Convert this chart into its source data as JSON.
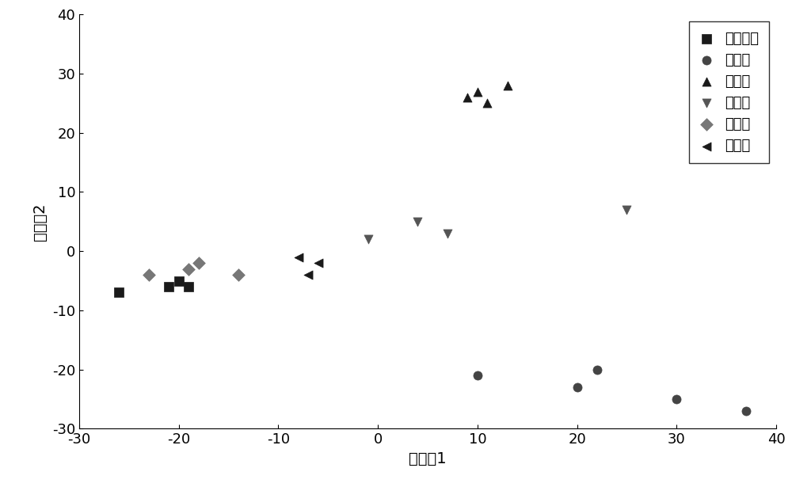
{
  "title": "",
  "xlabel": "主成劆1",
  "ylabel": "主成劆2",
  "xlim": [
    -30,
    40
  ],
  "ylim": [
    -30,
    40
  ],
  "xticks": [
    -30,
    -20,
    -10,
    0,
    10,
    20,
    30,
    40
  ],
  "yticks": [
    -30,
    -20,
    -10,
    0,
    10,
    20,
    30,
    40
  ],
  "series": [
    {
      "label": "葵花子油",
      "marker": "s",
      "color": "#1a1a1a",
      "markersize": 8,
      "x": [
        -26,
        -21,
        -20,
        -19
      ],
      "y": [
        -7,
        -6,
        -5,
        -6
      ]
    },
    {
      "label": "橄榄油",
      "marker": "o",
      "color": "#444444",
      "markersize": 8,
      "x": [
        10,
        20,
        22,
        30,
        37
      ],
      "y": [
        -21,
        -23,
        -20,
        -25,
        -27
      ]
    },
    {
      "label": "芥末油",
      "marker": "^",
      "color": "#1a1a1a",
      "markersize": 8,
      "x": [
        9,
        10,
        11,
        13
      ],
      "y": [
        26,
        27,
        25,
        28
      ]
    },
    {
      "label": "菜子油",
      "marker": "v",
      "color": "#555555",
      "markersize": 8,
      "x": [
        -1,
        4,
        7,
        25
      ],
      "y": [
        2,
        5,
        3,
        7
      ]
    },
    {
      "label": "玉米油",
      "marker": "D",
      "color": "#777777",
      "markersize": 8,
      "x": [
        -23,
        -19,
        -18,
        -14
      ],
      "y": [
        -4,
        -3,
        -2,
        -4
      ]
    },
    {
      "label": "花生油",
      "marker": "<",
      "color": "#1a1a1a",
      "markersize": 8,
      "x": [
        -8,
        -7,
        -6
      ],
      "y": [
        -1,
        -4,
        -2
      ]
    }
  ],
  "legend_loc": "upper right",
  "background_color": "#ffffff",
  "axis_color": "#000000",
  "font_size": 13,
  "label_font_size": 14,
  "tick_fontsize": 13
}
